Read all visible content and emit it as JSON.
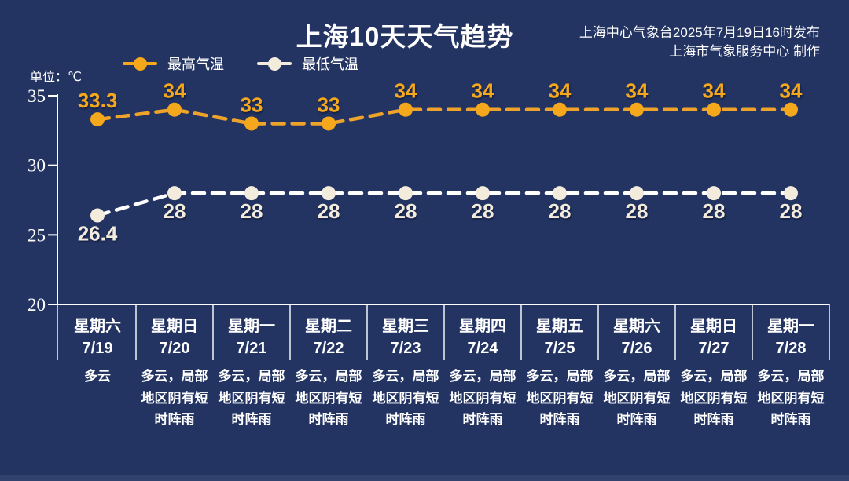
{
  "header": {
    "title": "上海10天天气趋势",
    "source_line1": "上海中心气象台2025年7月19日16时发布",
    "source_line2": "上海市气象服务中心 制作"
  },
  "unit_label": "单位：℃",
  "legend": [
    {
      "label": "最高气温",
      "color": "#F5A81C"
    },
    {
      "label": "最低气温",
      "color": "#F3EBDC"
    }
  ],
  "colors": {
    "background": "#233463",
    "axis": "#FFFFFF",
    "high_series": "#F5A81C",
    "high_line": "#F0A32A",
    "low_series": "#F3EBDC",
    "low_line": "#FFFFFF"
  },
  "chart_data": {
    "type": "line",
    "title": "上海10天天气趋势",
    "xlabel": "",
    "ylabel": "单位：℃",
    "ylim": [
      20,
      35
    ],
    "yticks": [
      35,
      30,
      25,
      20
    ],
    "grid": false,
    "legend_position": "top-left",
    "line_style": "dashed",
    "series": [
      {
        "name": "最高气温",
        "color": "#F5A81C",
        "values": [
          33.3,
          34,
          33,
          33,
          34,
          34,
          34,
          34,
          34,
          34
        ],
        "labels": [
          "33.3",
          "34",
          "33",
          "33",
          "34",
          "34",
          "34",
          "34",
          "34",
          "34"
        ],
        "label_position": "above"
      },
      {
        "name": "最低气温",
        "color": "#F3EBDC",
        "values": [
          26.4,
          28,
          28,
          28,
          28,
          28,
          28,
          28,
          28,
          28
        ],
        "labels": [
          "26.4",
          "28",
          "28",
          "28",
          "28",
          "28",
          "28",
          "28",
          "28",
          "28"
        ],
        "label_position": "below"
      }
    ],
    "days": [
      {
        "weekday": "星期六",
        "date": "7/19",
        "weather_lines": [
          "多云"
        ]
      },
      {
        "weekday": "星期日",
        "date": "7/20",
        "weather_lines": [
          "多云，局部",
          "地区阴有短",
          "时阵雨"
        ]
      },
      {
        "weekday": "星期一",
        "date": "7/21",
        "weather_lines": [
          "多云，局部",
          "地区阴有短",
          "时阵雨"
        ]
      },
      {
        "weekday": "星期二",
        "date": "7/22",
        "weather_lines": [
          "多云，局部",
          "地区阴有短",
          "时阵雨"
        ]
      },
      {
        "weekday": "星期三",
        "date": "7/23",
        "weather_lines": [
          "多云，局部",
          "地区阴有短",
          "时阵雨"
        ]
      },
      {
        "weekday": "星期四",
        "date": "7/24",
        "weather_lines": [
          "多云，局部",
          "地区阴有短",
          "时阵雨"
        ]
      },
      {
        "weekday": "星期五",
        "date": "7/25",
        "weather_lines": [
          "多云，局部",
          "地区阴有短",
          "时阵雨"
        ]
      },
      {
        "weekday": "星期六",
        "date": "7/26",
        "weather_lines": [
          "多云，局部",
          "地区阴有短",
          "时阵雨"
        ]
      },
      {
        "weekday": "星期日",
        "date": "7/27",
        "weather_lines": [
          "多云，局部",
          "地区阴有短",
          "时阵雨"
        ]
      },
      {
        "weekday": "星期一",
        "date": "7/28",
        "weather_lines": [
          "多云，局部",
          "地区阴有短",
          "时阵雨"
        ]
      }
    ]
  }
}
